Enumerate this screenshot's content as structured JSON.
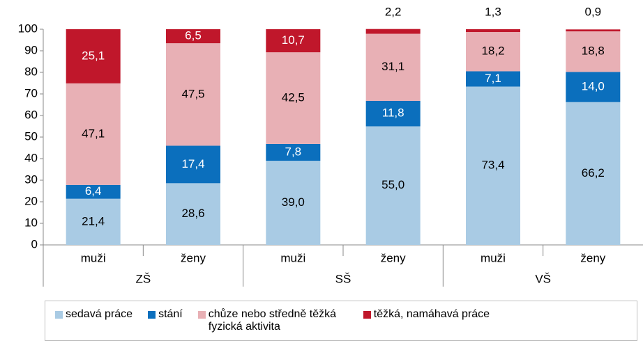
{
  "chart_data": {
    "type": "stacked_bar",
    "categories": [
      "muži",
      "ženy",
      "muži",
      "ženy",
      "muži",
      "ženy"
    ],
    "groups": [
      "ZŠ",
      "SŠ",
      "VŠ"
    ],
    "series": [
      {
        "name": "sedavá práce",
        "color": "#a9cbe4",
        "label_color": "#000000",
        "values": [
          21.4,
          28.6,
          39.0,
          55.0,
          73.4,
          66.2
        ],
        "value_labels": [
          "21,4",
          "28,6",
          "39,0",
          "55,0",
          "73,4",
          "66,2"
        ]
      },
      {
        "name": "stání",
        "color": "#0b6fbd",
        "label_color": "#ffffff",
        "values": [
          6.4,
          17.4,
          7.8,
          11.8,
          7.1,
          14.0
        ],
        "value_labels": [
          "6,4",
          "17,4",
          "7,8",
          "11,8",
          "7,1",
          "14,0"
        ]
      },
      {
        "name": "chůze nebo středně těžká fyzická aktivita",
        "color": "#e8b0b5",
        "label_color": "#000000",
        "values": [
          47.1,
          47.5,
          42.5,
          31.1,
          18.2,
          18.8
        ],
        "value_labels": [
          "47,1",
          "47,5",
          "42,5",
          "31,1",
          "18,2",
          "18,8"
        ]
      },
      {
        "name": "těžká, namáhavá práce",
        "color": "#c0172b",
        "label_color": "#ffffff",
        "values": [
          25.1,
          6.5,
          10.7,
          2.2,
          1.3,
          0.9
        ],
        "value_labels": [
          "25,1",
          "6,5",
          "10,7",
          "2,2",
          "1,3",
          "0,9"
        ]
      }
    ],
    "ylim": [
      0,
      100
    ],
    "yticks": [
      0,
      10,
      20,
      30,
      40,
      50,
      60,
      70,
      80,
      90,
      100
    ],
    "grid": false
  }
}
